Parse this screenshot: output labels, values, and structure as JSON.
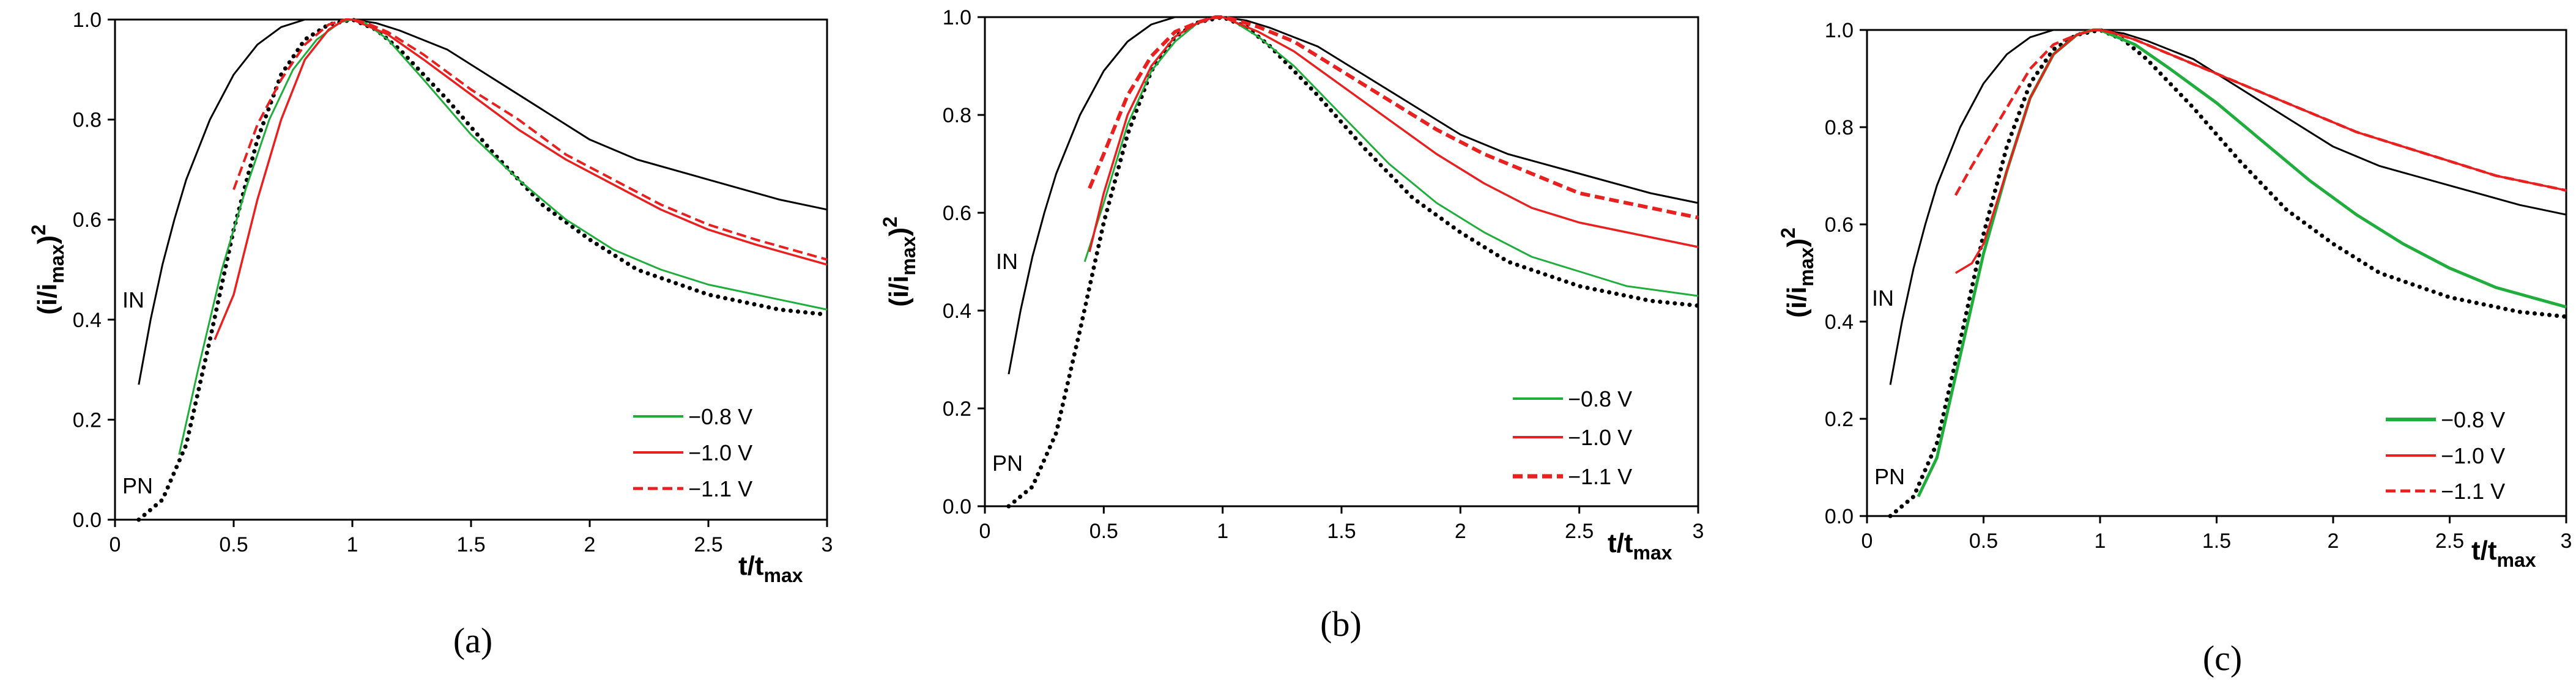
{
  "colors": {
    "im": "#000000",
    "pn": "#000000",
    "v08": "#1fad3c",
    "v10": "#e8201f",
    "v11": "#e8201f"
  },
  "labels": {
    "ylabel_main": "(i/i",
    "ylabel_sub": "max",
    "ylabel_sup": "2",
    "ylabel_close": ")",
    "xlabel_main": "t/t",
    "xlabel_sub": "max"
  },
  "chart_data": [
    {
      "type": "line",
      "panel": "(a)",
      "xlim": [
        0,
        3
      ],
      "ylim": [
        0,
        1
      ],
      "xticks": [
        "0",
        "0.5",
        "1",
        "1.5",
        "2",
        "2.5",
        "3"
      ],
      "yticks": [
        "0.0",
        "0.2",
        "0.4",
        "0.6",
        "0.8",
        "1.0"
      ],
      "xlabel": "t/tmax",
      "ylabel": "(i/imax)2",
      "curve_labels": [
        "IN",
        "PN"
      ],
      "legend": [
        "−0.8 V",
        "−1.0 V",
        "−1.1 V"
      ],
      "series": [
        {
          "name": "IN",
          "style": "im",
          "x": [
            0.1,
            0.15,
            0.2,
            0.25,
            0.3,
            0.4,
            0.5,
            0.6,
            0.7,
            0.8,
            0.9,
            1.0,
            1.1,
            1.2,
            1.4,
            1.6,
            1.8,
            2.0,
            2.2,
            2.5,
            2.8,
            3.0
          ],
          "y": [
            0.27,
            0.4,
            0.51,
            0.6,
            0.68,
            0.8,
            0.89,
            0.95,
            0.985,
            1.0,
            1.0,
            1.0,
            0.993,
            0.978,
            0.94,
            0.88,
            0.82,
            0.76,
            0.72,
            0.68,
            0.64,
            0.62
          ]
        },
        {
          "name": "PN",
          "style": "pn",
          "x": [
            0.1,
            0.2,
            0.3,
            0.4,
            0.5,
            0.6,
            0.7,
            0.8,
            0.9,
            1.0,
            1.1,
            1.2,
            1.4,
            1.6,
            1.8,
            2.0,
            2.2,
            2.5,
            2.8,
            3.0
          ],
          "y": [
            0.0,
            0.04,
            0.15,
            0.36,
            0.58,
            0.76,
            0.89,
            0.96,
            0.99,
            1.0,
            0.98,
            0.94,
            0.84,
            0.73,
            0.63,
            0.56,
            0.5,
            0.45,
            0.42,
            0.41
          ]
        },
        {
          "name": "−0.8 V",
          "style": "v08",
          "x": [
            0.27,
            0.35,
            0.45,
            0.55,
            0.65,
            0.75,
            0.85,
            0.95,
            1.0,
            1.05,
            1.15,
            1.3,
            1.5,
            1.7,
            1.9,
            2.1,
            2.3,
            2.5,
            2.7,
            3.0
          ],
          "y": [
            0.13,
            0.3,
            0.5,
            0.66,
            0.8,
            0.9,
            0.96,
            0.995,
            1.0,
            0.995,
            0.96,
            0.88,
            0.77,
            0.68,
            0.6,
            0.54,
            0.5,
            0.47,
            0.45,
            0.42
          ]
        },
        {
          "name": "−1.0 V",
          "style": "v10",
          "x": [
            0.42,
            0.5,
            0.6,
            0.7,
            0.8,
            0.9,
            0.97,
            1.0,
            1.05,
            1.15,
            1.3,
            1.5,
            1.7,
            1.9,
            2.1,
            2.3,
            2.5,
            2.7,
            3.0
          ],
          "y": [
            0.36,
            0.45,
            0.64,
            0.8,
            0.92,
            0.98,
            1.0,
            1.0,
            0.99,
            0.97,
            0.92,
            0.85,
            0.78,
            0.72,
            0.67,
            0.62,
            0.58,
            0.55,
            0.51
          ]
        },
        {
          "name": "−1.1 V",
          "style": "v11",
          "x": [
            0.5,
            0.6,
            0.7,
            0.8,
            0.9,
            0.97,
            1.0,
            1.05,
            1.15,
            1.3,
            1.5,
            1.7,
            1.9,
            2.1,
            2.3,
            2.5,
            2.7,
            3.0
          ],
          "y": [
            0.66,
            0.79,
            0.88,
            0.95,
            0.99,
            1.0,
            1.0,
            0.995,
            0.975,
            0.93,
            0.86,
            0.8,
            0.73,
            0.68,
            0.63,
            0.59,
            0.56,
            0.52
          ]
        }
      ]
    },
    {
      "type": "line",
      "panel": "(b)",
      "xlim": [
        0,
        3
      ],
      "ylim": [
        0,
        1
      ],
      "xticks": [
        "0",
        "0.5",
        "1",
        "1.5",
        "2",
        "2.5",
        "3"
      ],
      "yticks": [
        "0.0",
        "0.2",
        "0.4",
        "0.6",
        "0.8",
        "1.0"
      ],
      "xlabel": "t/tmax",
      "ylabel": "(i/imax)2",
      "curve_labels": [
        "IN",
        "PN"
      ],
      "legend": [
        "−0.8 V",
        "−1.0 V",
        "−1.1 V"
      ],
      "series": [
        {
          "name": "IN",
          "style": "im",
          "x": [
            0.1,
            0.15,
            0.2,
            0.25,
            0.3,
            0.4,
            0.5,
            0.6,
            0.7,
            0.8,
            0.9,
            1.0,
            1.1,
            1.2,
            1.4,
            1.6,
            1.8,
            2.0,
            2.2,
            2.5,
            2.8,
            3.0
          ],
          "y": [
            0.27,
            0.4,
            0.51,
            0.6,
            0.68,
            0.8,
            0.89,
            0.95,
            0.985,
            1.0,
            1.0,
            1.0,
            0.993,
            0.978,
            0.94,
            0.88,
            0.82,
            0.76,
            0.72,
            0.68,
            0.64,
            0.62
          ]
        },
        {
          "name": "PN",
          "style": "pn",
          "x": [
            0.1,
            0.2,
            0.3,
            0.4,
            0.5,
            0.6,
            0.7,
            0.8,
            0.9,
            1.0,
            1.1,
            1.2,
            1.4,
            1.6,
            1.8,
            2.0,
            2.2,
            2.5,
            2.8,
            3.0
          ],
          "y": [
            0.0,
            0.04,
            0.15,
            0.36,
            0.58,
            0.76,
            0.89,
            0.96,
            0.99,
            1.0,
            0.98,
            0.94,
            0.84,
            0.73,
            0.63,
            0.56,
            0.5,
            0.45,
            0.42,
            0.41
          ]
        },
        {
          "name": "−0.8 V",
          "style": "v08",
          "x": [
            0.42,
            0.5,
            0.6,
            0.7,
            0.8,
            0.9,
            0.97,
            1.0,
            1.05,
            1.15,
            1.3,
            1.5,
            1.7,
            1.9,
            2.1,
            2.3,
            2.5,
            2.7,
            3.0
          ],
          "y": [
            0.5,
            0.62,
            0.78,
            0.89,
            0.95,
            0.99,
            1.0,
            1.0,
            0.99,
            0.96,
            0.9,
            0.8,
            0.7,
            0.62,
            0.56,
            0.51,
            0.48,
            0.45,
            0.43
          ]
        },
        {
          "name": "−1.0 V",
          "style": "v10",
          "x": [
            0.44,
            0.5,
            0.6,
            0.7,
            0.8,
            0.9,
            0.97,
            1.0,
            1.05,
            1.15,
            1.3,
            1.5,
            1.7,
            1.9,
            2.1,
            2.3,
            2.5,
            2.7,
            3.0
          ],
          "y": [
            0.52,
            0.64,
            0.8,
            0.9,
            0.96,
            0.99,
            1.0,
            1.0,
            0.99,
            0.97,
            0.93,
            0.86,
            0.79,
            0.72,
            0.66,
            0.61,
            0.58,
            0.56,
            0.53
          ]
        },
        {
          "name": "−1.1 V",
          "style": "v11",
          "x": [
            0.44,
            0.5,
            0.6,
            0.7,
            0.8,
            0.9,
            0.97,
            1.0,
            1.05,
            1.15,
            1.3,
            1.5,
            1.7,
            1.9,
            2.1,
            2.3,
            2.5,
            2.7,
            3.0
          ],
          "y": [
            0.65,
            0.72,
            0.84,
            0.92,
            0.97,
            0.99,
            1.0,
            1.0,
            0.995,
            0.98,
            0.95,
            0.89,
            0.83,
            0.77,
            0.72,
            0.68,
            0.64,
            0.62,
            0.59
          ]
        }
      ]
    },
    {
      "type": "line",
      "panel": "(c)",
      "xlim": [
        0,
        3
      ],
      "ylim": [
        0,
        1
      ],
      "xticks": [
        "0",
        "0.5",
        "1",
        "1.5",
        "2",
        "2.5",
        "3"
      ],
      "yticks": [
        "0.0",
        "0.2",
        "0.4",
        "0.6",
        "0.8",
        "1.0"
      ],
      "xlabel": "t/tmax",
      "ylabel": "(i/imax)2",
      "curve_labels": [
        "IN",
        "PN"
      ],
      "legend": [
        "−0.8 V",
        "−1.0 V",
        "−1.1 V"
      ],
      "series": [
        {
          "name": "IN",
          "style": "im",
          "x": [
            0.1,
            0.15,
            0.2,
            0.25,
            0.3,
            0.4,
            0.5,
            0.6,
            0.7,
            0.8,
            0.9,
            1.0,
            1.1,
            1.2,
            1.4,
            1.6,
            1.8,
            2.0,
            2.2,
            2.5,
            2.8,
            3.0
          ],
          "y": [
            0.27,
            0.4,
            0.51,
            0.6,
            0.68,
            0.8,
            0.89,
            0.95,
            0.985,
            1.0,
            1.0,
            1.0,
            0.993,
            0.978,
            0.94,
            0.88,
            0.82,
            0.76,
            0.72,
            0.68,
            0.64,
            0.62
          ]
        },
        {
          "name": "PN",
          "style": "pn",
          "x": [
            0.1,
            0.2,
            0.3,
            0.4,
            0.5,
            0.6,
            0.7,
            0.8,
            0.9,
            1.0,
            1.1,
            1.2,
            1.4,
            1.6,
            1.8,
            2.0,
            2.2,
            2.5,
            2.8,
            3.0
          ],
          "y": [
            0.0,
            0.04,
            0.15,
            0.36,
            0.58,
            0.76,
            0.89,
            0.96,
            0.99,
            1.0,
            0.98,
            0.94,
            0.84,
            0.73,
            0.63,
            0.56,
            0.5,
            0.45,
            0.42,
            0.41
          ]
        },
        {
          "name": "−0.8 V",
          "style": "v08",
          "x": [
            0.22,
            0.3,
            0.4,
            0.5,
            0.6,
            0.7,
            0.8,
            0.9,
            0.97,
            1.0,
            1.05,
            1.15,
            1.3,
            1.5,
            1.7,
            1.9,
            2.1,
            2.3,
            2.5,
            2.7,
            3.0
          ],
          "y": [
            0.04,
            0.12,
            0.33,
            0.54,
            0.71,
            0.86,
            0.95,
            0.99,
            1.0,
            1.0,
            0.99,
            0.97,
            0.92,
            0.85,
            0.77,
            0.69,
            0.62,
            0.56,
            0.51,
            0.47,
            0.43
          ]
        },
        {
          "name": "−1.0 V",
          "style": "v10",
          "x": [
            0.38,
            0.45,
            0.5,
            0.6,
            0.7,
            0.8,
            0.9,
            0.97,
            1.0,
            1.05,
            1.15,
            1.3,
            1.5,
            1.7,
            1.9,
            2.1,
            2.3,
            2.5,
            2.7,
            3.0
          ],
          "y": [
            0.5,
            0.52,
            0.56,
            0.71,
            0.86,
            0.95,
            0.99,
            1.0,
            1.0,
            0.995,
            0.98,
            0.95,
            0.91,
            0.87,
            0.83,
            0.79,
            0.76,
            0.73,
            0.7,
            0.67
          ]
        },
        {
          "name": "−1.1 V",
          "style": "v11",
          "x": [
            0.38,
            0.45,
            0.5,
            0.6,
            0.7,
            0.8,
            0.9,
            0.97,
            1.0,
            1.05,
            1.15,
            1.3,
            1.5,
            1.7,
            1.9,
            2.1,
            2.3,
            2.5,
            2.7,
            3.0
          ],
          "y": [
            0.66,
            0.72,
            0.76,
            0.84,
            0.92,
            0.97,
            0.99,
            1.0,
            1.0,
            0.995,
            0.98,
            0.95,
            0.91,
            0.87,
            0.83,
            0.79,
            0.76,
            0.73,
            0.7,
            0.67
          ]
        }
      ]
    }
  ]
}
